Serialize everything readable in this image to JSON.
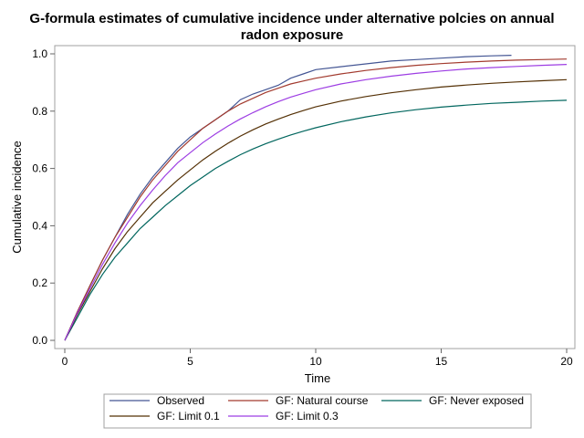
{
  "chart_data": {
    "type": "line",
    "title_line1": "G-formula estimates of cumulative incidence under alternative polcies on annual",
    "title_line2": "radon exposure",
    "xlabel": "Time",
    "ylabel": "Cumulative incidence",
    "xlim": [
      0,
      20
    ],
    "ylim": [
      0,
      1.0
    ],
    "x_ticks": [
      0,
      5,
      10,
      15,
      20
    ],
    "x_tick_labels": [
      "0",
      "5",
      "10",
      "15",
      "20"
    ],
    "y_ticks": [
      0.0,
      0.2,
      0.4,
      0.6,
      0.8,
      1.0
    ],
    "y_tick_labels": [
      "0.0",
      "0.2",
      "0.4",
      "0.6",
      "0.8",
      "1.0"
    ],
    "grid": false,
    "legend_position": "bottom",
    "series": [
      {
        "name": "Observed",
        "color": "#445694",
        "x": [
          0,
          0.5,
          1,
          1.5,
          2,
          2.5,
          3,
          3.5,
          4,
          4.5,
          5,
          5.5,
          6,
          6.5,
          7,
          7.5,
          8,
          8.5,
          9,
          9.5,
          10,
          11,
          12,
          13,
          14,
          15,
          16,
          17,
          17.8
        ],
        "y": [
          0,
          0.1,
          0.19,
          0.28,
          0.36,
          0.44,
          0.51,
          0.57,
          0.62,
          0.67,
          0.71,
          0.74,
          0.77,
          0.8,
          0.84,
          0.86,
          0.875,
          0.89,
          0.915,
          0.93,
          0.945,
          0.955,
          0.965,
          0.975,
          0.98,
          0.985,
          0.99,
          0.993,
          0.995
        ]
      },
      {
        "name": "GF: Natural course",
        "color": "#a23a2e",
        "x": [
          0,
          0.5,
          1,
          1.5,
          2,
          2.5,
          3,
          3.5,
          4,
          4.5,
          5,
          5.5,
          6,
          6.5,
          7,
          7.5,
          8,
          8.5,
          9,
          9.5,
          10,
          11,
          12,
          13,
          14,
          15,
          16,
          17,
          18,
          19,
          20
        ],
        "y": [
          0,
          0.1,
          0.19,
          0.28,
          0.36,
          0.43,
          0.5,
          0.56,
          0.61,
          0.66,
          0.7,
          0.74,
          0.77,
          0.8,
          0.825,
          0.845,
          0.865,
          0.88,
          0.895,
          0.905,
          0.915,
          0.93,
          0.942,
          0.952,
          0.96,
          0.966,
          0.971,
          0.975,
          0.978,
          0.98,
          0.982
        ]
      },
      {
        "name": "GF: Never exposed",
        "color": "#01665e",
        "x": [
          0,
          0.5,
          1,
          1.5,
          2,
          2.5,
          3,
          3.5,
          4,
          4.5,
          5,
          5.5,
          6,
          6.5,
          7,
          7.5,
          8,
          8.5,
          9,
          9.5,
          10,
          11,
          12,
          13,
          14,
          15,
          16,
          17,
          18,
          19,
          20
        ],
        "y": [
          0,
          0.08,
          0.16,
          0.23,
          0.29,
          0.34,
          0.39,
          0.43,
          0.47,
          0.505,
          0.54,
          0.57,
          0.6,
          0.625,
          0.648,
          0.668,
          0.686,
          0.702,
          0.717,
          0.73,
          0.742,
          0.763,
          0.78,
          0.794,
          0.805,
          0.814,
          0.821,
          0.827,
          0.831,
          0.835,
          0.838
        ]
      },
      {
        "name": "GF: Limit 0.1",
        "color": "#543005",
        "x": [
          0,
          0.5,
          1,
          1.5,
          2,
          2.5,
          3,
          3.5,
          4,
          4.5,
          5,
          5.5,
          6,
          6.5,
          7,
          7.5,
          8,
          8.5,
          9,
          9.5,
          10,
          11,
          12,
          13,
          14,
          15,
          16,
          17,
          18,
          19,
          20
        ],
        "y": [
          0,
          0.09,
          0.17,
          0.25,
          0.32,
          0.38,
          0.43,
          0.48,
          0.52,
          0.56,
          0.595,
          0.63,
          0.66,
          0.688,
          0.713,
          0.735,
          0.755,
          0.772,
          0.788,
          0.802,
          0.815,
          0.835,
          0.851,
          0.864,
          0.875,
          0.884,
          0.891,
          0.897,
          0.902,
          0.906,
          0.91
        ]
      },
      {
        "name": "GF: Limit 0.3",
        "color": "#9d3de3",
        "x": [
          0,
          0.5,
          1,
          1.5,
          2,
          2.5,
          3,
          3.5,
          4,
          4.5,
          5,
          5.5,
          6,
          6.5,
          7,
          7.5,
          8,
          8.5,
          9,
          9.5,
          10,
          11,
          12,
          13,
          14,
          15,
          16,
          17,
          18,
          19,
          20
        ],
        "y": [
          0,
          0.095,
          0.18,
          0.265,
          0.34,
          0.41,
          0.47,
          0.525,
          0.575,
          0.62,
          0.655,
          0.69,
          0.72,
          0.748,
          0.773,
          0.795,
          0.815,
          0.833,
          0.849,
          0.862,
          0.875,
          0.895,
          0.91,
          0.922,
          0.932,
          0.94,
          0.947,
          0.952,
          0.956,
          0.96,
          0.963
        ]
      }
    ]
  }
}
